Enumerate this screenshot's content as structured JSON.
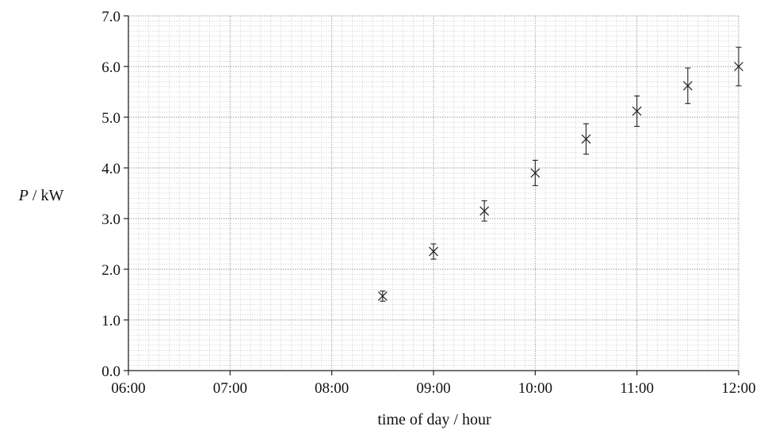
{
  "chart_data": {
    "type": "scatter",
    "title": "",
    "xlabel": "time of day / hour",
    "ylabel_var": "P",
    "ylabel_unit": " / kW",
    "xlim": [
      6,
      12
    ],
    "ylim": [
      0,
      7
    ],
    "x_ticks": [
      {
        "value": 6,
        "label": "06:00"
      },
      {
        "value": 7,
        "label": "07:00"
      },
      {
        "value": 8,
        "label": "08:00"
      },
      {
        "value": 9,
        "label": "09:00"
      },
      {
        "value": 10,
        "label": "10:00"
      },
      {
        "value": 11,
        "label": "11:00"
      },
      {
        "value": 12,
        "label": "12:00"
      }
    ],
    "y_ticks": [
      {
        "value": 0,
        "label": "0.0"
      },
      {
        "value": 1,
        "label": "1.0"
      },
      {
        "value": 2,
        "label": "2.0"
      },
      {
        "value": 3,
        "label": "3.0"
      },
      {
        "value": 4,
        "label": "4.0"
      },
      {
        "value": 5,
        "label": "5.0"
      },
      {
        "value": 6,
        "label": "6.0"
      },
      {
        "value": 7,
        "label": "7.0"
      }
    ],
    "grid": true,
    "marker": "x-cross with error bars",
    "points": [
      {
        "x": 8.5,
        "y": 1.47,
        "err": 0.1
      },
      {
        "x": 9.0,
        "y": 2.35,
        "err": 0.15
      },
      {
        "x": 9.5,
        "y": 3.15,
        "err": 0.2
      },
      {
        "x": 10.0,
        "y": 3.9,
        "err": 0.25
      },
      {
        "x": 10.5,
        "y": 4.57,
        "err": 0.3
      },
      {
        "x": 11.0,
        "y": 5.12,
        "err": 0.3
      },
      {
        "x": 11.5,
        "y": 5.62,
        "err": 0.35
      },
      {
        "x": 12.0,
        "y": 6.0,
        "err": 0.38
      }
    ]
  }
}
